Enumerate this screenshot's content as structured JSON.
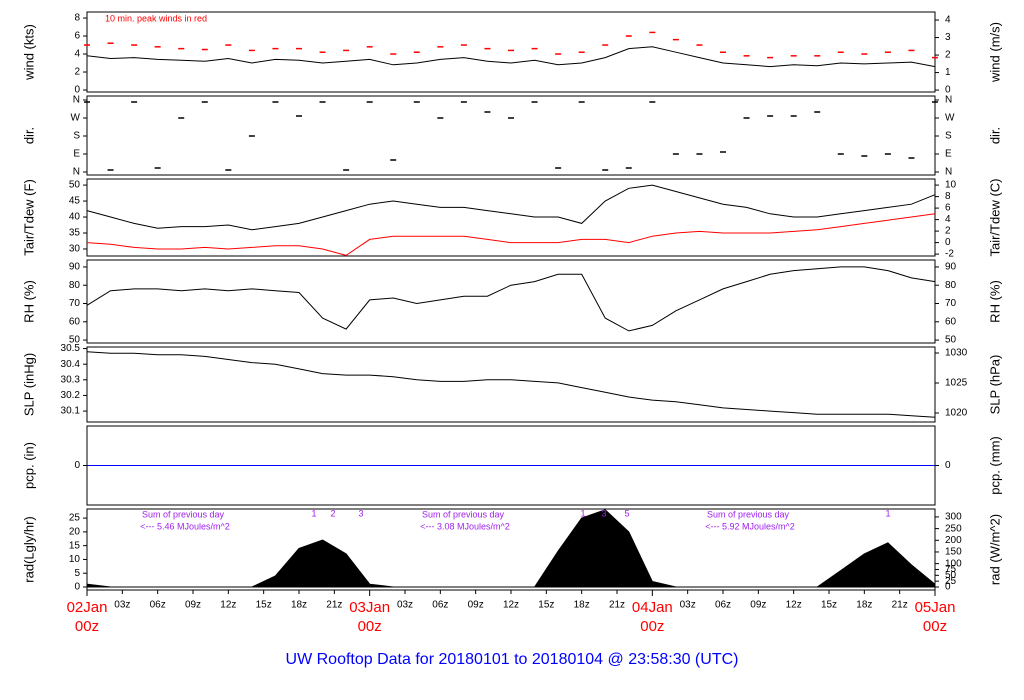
{
  "x_axis": {
    "xlim": [
      0,
      72
    ],
    "x": [
      0,
      2,
      4,
      6,
      8,
      10,
      12,
      14,
      16,
      18,
      20,
      22,
      24,
      26,
      28,
      30,
      32,
      34,
      36,
      38,
      40,
      42,
      44,
      46,
      48,
      50,
      52,
      54,
      56,
      58,
      60,
      62,
      64,
      66,
      68,
      70,
      72
    ],
    "xticks": [
      {
        "value": 3,
        "label": "03z"
      },
      {
        "value": 6,
        "label": "06z"
      },
      {
        "value": 9,
        "label": "09z"
      },
      {
        "value": 12,
        "label": "12z"
      },
      {
        "value": 15,
        "label": "15z"
      },
      {
        "value": 18,
        "label": "18z"
      },
      {
        "value": 21,
        "label": "21z"
      },
      {
        "value": 27,
        "label": "03z"
      },
      {
        "value": 30,
        "label": "06z"
      },
      {
        "value": 33,
        "label": "09z"
      },
      {
        "value": 36,
        "label": "12z"
      },
      {
        "value": 39,
        "label": "15z"
      },
      {
        "value": 42,
        "label": "18z"
      },
      {
        "value": 45,
        "label": "21z"
      },
      {
        "value": 51,
        "label": "03z"
      },
      {
        "value": 54,
        "label": "06z"
      },
      {
        "value": 57,
        "label": "09z"
      },
      {
        "value": 60,
        "label": "12z"
      },
      {
        "value": 63,
        "label": "15z"
      },
      {
        "value": 66,
        "label": "18z"
      },
      {
        "value": 69,
        "label": "21z"
      }
    ],
    "day_ticks": [
      {
        "value": 0,
        "date": "02Jan",
        "hour": "00z"
      },
      {
        "value": 24,
        "date": "03Jan",
        "hour": "00z"
      },
      {
        "value": 48,
        "date": "04Jan",
        "hour": "00z"
      },
      {
        "value": 72,
        "date": "05Jan",
        "hour": "00z"
      }
    ]
  },
  "title": "UW Rooftop Data for 20180101  to  20180104 @ 23:58:30  (UTC)",
  "chart_data": [
    {
      "type": "line",
      "ylabel": "wind (kts)",
      "y2label": "wind (m/s)",
      "annotation": "10 min. peak winds in red",
      "ylim": [
        -0.22,
        8.67
      ],
      "yticks": [
        0,
        2,
        4,
        6,
        8
      ],
      "y2lim": [
        -0.11,
        4.46
      ],
      "y2ticks": [
        0,
        1,
        2,
        3,
        4
      ],
      "series": [
        {
          "name": "wind",
          "color": "#000000",
          "style": "line",
          "values": [
            3.8,
            3.5,
            3.6,
            3.4,
            3.3,
            3.2,
            3.5,
            3.0,
            3.4,
            3.3,
            3.0,
            3.2,
            3.4,
            2.8,
            3.0,
            3.4,
            3.6,
            3.2,
            3.0,
            3.3,
            2.8,
            3.0,
            3.6,
            4.6,
            4.8,
            4.2,
            3.6,
            3.0,
            2.8,
            2.6,
            2.8,
            2.7,
            3.0,
            2.9,
            3.0,
            3.1,
            2.6
          ]
        },
        {
          "name": "peak",
          "color": "#ff0000",
          "style": "dash",
          "values": [
            5.0,
            5.2,
            5.0,
            4.8,
            4.6,
            4.5,
            5.0,
            4.4,
            4.6,
            4.6,
            4.2,
            4.4,
            4.8,
            4.0,
            4.2,
            4.8,
            5.0,
            4.6,
            4.4,
            4.6,
            4.0,
            4.2,
            5.0,
            6.0,
            6.4,
            5.6,
            5.0,
            4.2,
            3.8,
            3.6,
            3.8,
            3.8,
            4.2,
            4.0,
            4.2,
            4.4,
            3.6
          ]
        }
      ]
    },
    {
      "type": "line",
      "ylabel": "dir.",
      "y2label": "dir.",
      "ylim": [
        -15,
        380
      ],
      "yticks": [
        {
          "value": 360,
          "label": "N"
        },
        {
          "value": 270,
          "label": "W"
        },
        {
          "value": 180,
          "label": "S"
        },
        {
          "value": 90,
          "label": "E"
        },
        {
          "value": 0,
          "label": "N"
        }
      ],
      "y2lim": [
        -15,
        380
      ],
      "y2ticks": [
        {
          "value": 360,
          "label": "N"
        },
        {
          "value": 270,
          "label": "W"
        },
        {
          "value": 180,
          "label": "S"
        },
        {
          "value": 90,
          "label": "E"
        },
        {
          "value": 0,
          "label": "N"
        }
      ],
      "series": [
        {
          "name": "dir",
          "color": "#000000",
          "style": "dash",
          "values": [
            350,
            10,
            350,
            20,
            270,
            350,
            10,
            180,
            350,
            280,
            350,
            10,
            350,
            60,
            350,
            270,
            350,
            300,
            270,
            350,
            20,
            350,
            10,
            20,
            350,
            90,
            90,
            100,
            270,
            280,
            280,
            300,
            90,
            80,
            90,
            70,
            350
          ]
        }
      ]
    },
    {
      "type": "line",
      "ylabel": "Tair/Tdew (F)",
      "y2label": "Tair/Tdew (C)",
      "ylim": [
        27.8,
        51.9
      ],
      "yticks": [
        30,
        35,
        40,
        45,
        50
      ],
      "y2lim": [
        -2.33,
        11.06
      ],
      "y2ticks": [
        -2,
        0,
        2,
        4,
        6,
        8,
        10
      ],
      "series": [
        {
          "name": "Tair",
          "color": "#000000",
          "style": "line",
          "values": [
            42,
            40,
            38,
            36.5,
            37,
            37,
            37.5,
            36,
            37,
            38,
            40,
            42,
            44,
            45,
            44,
            43,
            43,
            42,
            41,
            40,
            40,
            38,
            45,
            49,
            50,
            48,
            46,
            44,
            43,
            41,
            40,
            40,
            41,
            42,
            43,
            44,
            47
          ]
        },
        {
          "name": "Tdew",
          "color": "#ff0000",
          "style": "line",
          "values": [
            32,
            31.5,
            30.5,
            30,
            30,
            30.5,
            30,
            30.5,
            31,
            31,
            30,
            28,
            33,
            34,
            34,
            34,
            34,
            33,
            32,
            32,
            32,
            33,
            33,
            32,
            34,
            35,
            35.5,
            35,
            35,
            35,
            35.5,
            36,
            37,
            38,
            39,
            40,
            41
          ]
        }
      ]
    },
    {
      "type": "line",
      "ylabel": "RH (%)",
      "y2label": "RH (%)",
      "ylim": [
        48.4,
        93.8
      ],
      "yticks": [
        50,
        60,
        70,
        80,
        90
      ],
      "y2lim": [
        48.4,
        93.8
      ],
      "y2ticks": [
        50,
        60,
        70,
        80,
        90
      ],
      "series": [
        {
          "name": "RH",
          "color": "#000000",
          "style": "line",
          "values": [
            69,
            77,
            78,
            78,
            77,
            78,
            77,
            78,
            77,
            76,
            62,
            56,
            72,
            73,
            70,
            72,
            74,
            74,
            80,
            82,
            86,
            86,
            62,
            55,
            58,
            66,
            72,
            78,
            82,
            86,
            88,
            89,
            90,
            90,
            88,
            84,
            82
          ]
        }
      ]
    },
    {
      "type": "line",
      "ylabel": "SLP (inHg)",
      "y2label": "SLP (hPa)",
      "ylim": [
        30.03,
        30.51
      ],
      "yticks": [
        {
          "value": 30.1,
          "label": "30.1"
        },
        {
          "value": 30.2,
          "label": "30.2"
        },
        {
          "value": 30.3,
          "label": "30.3"
        },
        {
          "value": 30.4,
          "label": "30.4"
        },
        {
          "value": 30.5,
          "label": "30.5"
        }
      ],
      "y2lim": [
        1018.5,
        1031
      ],
      "y2ticks": [
        1020,
        1025,
        1030
      ],
      "series": [
        {
          "name": "SLP",
          "color": "#000000",
          "style": "line",
          "values": [
            30.48,
            30.47,
            30.47,
            30.46,
            30.46,
            30.45,
            30.43,
            30.41,
            30.4,
            30.37,
            30.34,
            30.33,
            30.33,
            30.32,
            30.3,
            30.29,
            30.29,
            30.3,
            30.3,
            30.29,
            30.28,
            30.25,
            30.22,
            30.19,
            30.17,
            30.16,
            30.14,
            30.12,
            30.11,
            30.1,
            30.09,
            30.08,
            30.08,
            30.08,
            30.08,
            30.07,
            30.06
          ]
        }
      ]
    },
    {
      "type": "line",
      "ylabel": "pcp. (in)",
      "y2label": "pcp. (mm)",
      "ylim": [
        -1,
        1
      ],
      "yticks": [
        0
      ],
      "y2lim": [
        -25.4,
        25.4
      ],
      "y2ticks": [
        0
      ],
      "series": [
        {
          "name": "pcp",
          "color": "#0000ff",
          "style": "line",
          "values": [
            0,
            0,
            0,
            0,
            0,
            0,
            0,
            0,
            0,
            0,
            0,
            0,
            0,
            0,
            0,
            0,
            0,
            0,
            0,
            0,
            0,
            0,
            0,
            0,
            0,
            0,
            0,
            0,
            0,
            0,
            0,
            0,
            0,
            0,
            0,
            0,
            0
          ]
        }
      ]
    },
    {
      "type": "line",
      "ylabel": "rad(Lgly/hr)",
      "y2label": "rad (W/m^2)",
      "ylim": [
        -1.09,
        28.3
      ],
      "yticks": [
        0,
        5,
        10,
        15,
        20,
        25
      ],
      "y2lim": [
        -12.9,
        334
      ],
      "y2ticks": [
        0,
        25,
        50,
        75,
        100,
        150,
        200,
        250,
        300
      ],
      "annotations": [
        "Sum of previous day",
        "<--- 5.46 MJoules/m^2",
        "Sum of previous day",
        "<--- 3.08 MJoules/m^2",
        "Sum of previous day",
        "<--- 5.92 MJoules/m^2"
      ],
      "hour_marks": [
        "1",
        "2",
        "3",
        "1",
        "3",
        "5",
        "1"
      ],
      "series": [
        {
          "name": "rad",
          "color": "#000000",
          "style": "area",
          "values": [
            1,
            0,
            0,
            0,
            0,
            0,
            0,
            0,
            4,
            14,
            17,
            12,
            1,
            0,
            0,
            0,
            0,
            0,
            0,
            0,
            13,
            25,
            28,
            20,
            2,
            0,
            0,
            0,
            0,
            0,
            0,
            0,
            6,
            12,
            16,
            8,
            1
          ]
        }
      ]
    }
  ]
}
